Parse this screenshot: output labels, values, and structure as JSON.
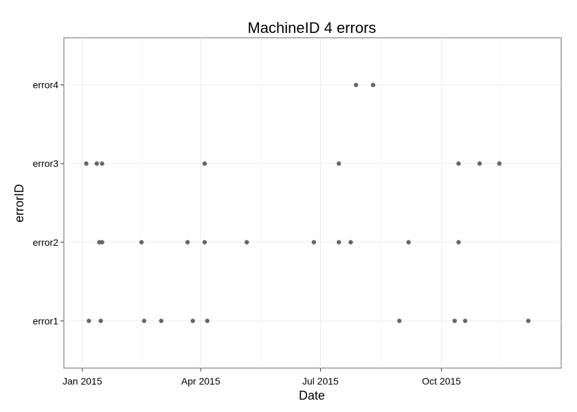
{
  "chart_data": {
    "type": "scatter",
    "title": "MachineID 4 errors",
    "xlabel": "Date",
    "ylabel": "errorID",
    "x_scale": "date",
    "xlim": [
      "2014-12-18",
      "2015-12-31"
    ],
    "x_ticks": [
      {
        "date": "2015-01-01",
        "label": "Jan 2015"
      },
      {
        "date": "2015-04-01",
        "label": "Apr 2015"
      },
      {
        "date": "2015-07-01",
        "label": "Jul 2015"
      },
      {
        "date": "2015-10-01",
        "label": "Oct 2015"
      }
    ],
    "categories": [
      "error1",
      "error2",
      "error3",
      "error4"
    ],
    "point_color": "#666666",
    "grid": true,
    "legend": "none",
    "series": [
      {
        "values": [
          {
            "x": "2015-01-06",
            "y": "error1"
          },
          {
            "x": "2015-01-15",
            "y": "error1"
          },
          {
            "x": "2015-02-17",
            "y": "error1"
          },
          {
            "x": "2015-03-02",
            "y": "error1"
          },
          {
            "x": "2015-03-26",
            "y": "error1"
          },
          {
            "x": "2015-04-06",
            "y": "error1"
          },
          {
            "x": "2015-08-30",
            "y": "error1"
          },
          {
            "x": "2015-10-11",
            "y": "error1"
          },
          {
            "x": "2015-10-19",
            "y": "error1"
          },
          {
            "x": "2015-12-06",
            "y": "error1"
          },
          {
            "x": "2015-01-14",
            "y": "error2"
          },
          {
            "x": "2015-01-16",
            "y": "error2"
          },
          {
            "x": "2015-02-15",
            "y": "error2"
          },
          {
            "x": "2015-03-22",
            "y": "error2"
          },
          {
            "x": "2015-04-04",
            "y": "error2"
          },
          {
            "x": "2015-05-06",
            "y": "error2"
          },
          {
            "x": "2015-06-26",
            "y": "error2"
          },
          {
            "x": "2015-07-15",
            "y": "error2"
          },
          {
            "x": "2015-07-24",
            "y": "error2"
          },
          {
            "x": "2015-09-06",
            "y": "error2"
          },
          {
            "x": "2015-10-14",
            "y": "error2"
          },
          {
            "x": "2015-01-04",
            "y": "error3"
          },
          {
            "x": "2015-01-12",
            "y": "error3"
          },
          {
            "x": "2015-01-16",
            "y": "error3"
          },
          {
            "x": "2015-04-04",
            "y": "error3"
          },
          {
            "x": "2015-07-15",
            "y": "error3"
          },
          {
            "x": "2015-10-14",
            "y": "error3"
          },
          {
            "x": "2015-10-30",
            "y": "error3"
          },
          {
            "x": "2015-11-14",
            "y": "error3"
          },
          {
            "x": "2015-07-28",
            "y": "error4"
          },
          {
            "x": "2015-08-10",
            "y": "error4"
          }
        ]
      }
    ]
  }
}
